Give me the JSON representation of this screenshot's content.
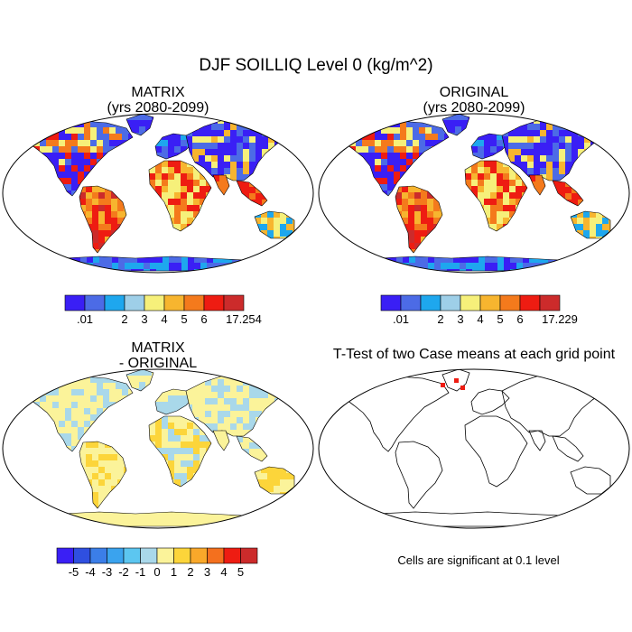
{
  "title": "DJF SOILLIQ Level 0 (kg/m^2)",
  "panels": [
    {
      "id": "matrix",
      "title_line1": "MATRIX",
      "title_line2": "(yrs 2080-2099)",
      "colorbar": {
        "labels": [
          ".01",
          "",
          "2",
          "3",
          "4",
          "5",
          "6",
          "",
          "17.254"
        ],
        "colors": [
          "#3a1ff5",
          "#4c6be6",
          "#1ea7ee",
          "#9ecfe8",
          "#f6f07a",
          "#f7b52f",
          "#f47a1c",
          "#ee1c12",
          "#cc2b2b"
        ]
      }
    },
    {
      "id": "original",
      "title_line1": "ORIGINAL",
      "title_line2": "(yrs 2080-2099)",
      "colorbar": {
        "labels": [
          ".01",
          "",
          "2",
          "3",
          "4",
          "5",
          "6",
          "",
          "17.229"
        ],
        "colors": [
          "#3a1ff5",
          "#4c6be6",
          "#1ea7ee",
          "#9ecfe8",
          "#f6f07a",
          "#f7b52f",
          "#f47a1c",
          "#ee1c12",
          "#cc2b2b"
        ]
      }
    },
    {
      "id": "difference",
      "title_line1": "MATRIX",
      "title_line2": "- ORIGINAL",
      "colorbar": {
        "labels": [
          "-5",
          "-4",
          "-3",
          "-2",
          "-1",
          "0",
          "1",
          "2",
          "3",
          "4",
          "5"
        ],
        "colors": [
          "#3a1ff5",
          "#2f4fe0",
          "#3b7ee8",
          "#3aa3ee",
          "#5cc6f0",
          "#a9d8ea",
          "#fbf39a",
          "#fcd53a",
          "#f9a82a",
          "#f4701e",
          "#ee1c12",
          "#cc2b2b"
        ]
      }
    },
    {
      "id": "ttest",
      "title_line1": "T-Test of two Case means at each grid point",
      "title_line2": "",
      "footnote": "Cells are significant at 0.1 level"
    }
  ]
}
